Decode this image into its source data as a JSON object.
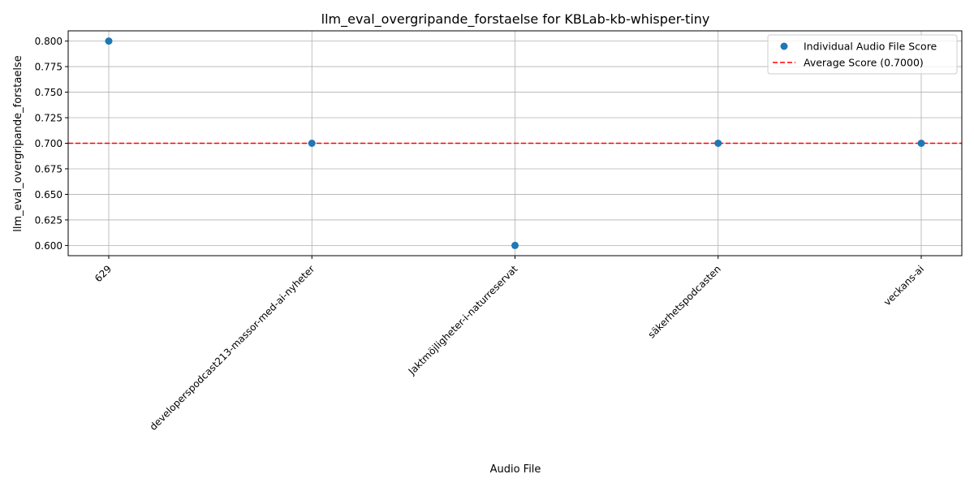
{
  "chart_data": {
    "type": "scatter",
    "title": "llm_eval_overgripande_forstaelse for KBLab-kb-whisper-tiny",
    "xlabel": "Audio File",
    "ylabel": "llm_eval_overgripande_forstaelse",
    "categories": [
      "629",
      "developerspodcast213-massor-med-ai-nyheter",
      "Jaktmöjligheter-i-naturreservat",
      "säkerhetspodcasten",
      "veckans-ai"
    ],
    "series": [
      {
        "name": "Individual Audio File Score",
        "values": [
          0.8,
          0.7,
          0.6,
          0.7,
          0.7
        ],
        "color": "#1f77b4"
      }
    ],
    "reference_line": {
      "name": "Average Score (0.7000)",
      "value": 0.7,
      "style": "dashed",
      "color": "#ff0000"
    },
    "yticks": [
      "0.600",
      "0.625",
      "0.650",
      "0.675",
      "0.700",
      "0.725",
      "0.750",
      "0.775",
      "0.800"
    ],
    "ylim": [
      0.59,
      0.81
    ],
    "grid": true,
    "legend_position": "top-right"
  }
}
